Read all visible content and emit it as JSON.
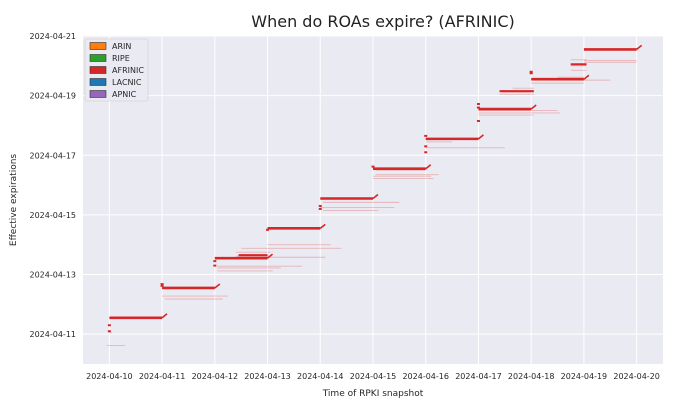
{
  "chart_data": {
    "type": "scatter",
    "title": "When do ROAs expire? (AFRINIC)",
    "xlabel": "Time of RPKI snapshot",
    "ylabel": "Effective expirations",
    "x_ticks": [
      "2024-04-10",
      "2024-04-11",
      "2024-04-12",
      "2024-04-13",
      "2024-04-14",
      "2024-04-15",
      "2024-04-16",
      "2024-04-17",
      "2024-04-18",
      "2024-04-19",
      "2024-04-20"
    ],
    "y_ticks": [
      "2024-04-11",
      "2024-04-13",
      "2024-04-15",
      "2024-04-17",
      "2024-04-19",
      "2024-04-21"
    ],
    "x_range_days": [
      -0.5,
      10.5
    ],
    "y_range_days": [
      0.0,
      11.0
    ],
    "grid": true,
    "legend_position": "top-left",
    "legend": [
      {
        "name": "ARIN",
        "color": "#ff7f0e"
      },
      {
        "name": "RIPE",
        "color": "#2ca02c"
      },
      {
        "name": "AFRINIC",
        "color": "#d62728"
      },
      {
        "name": "LACNIC",
        "color": "#1f77b4"
      },
      {
        "name": "APNIC",
        "color": "#9467bd"
      }
    ],
    "series": [
      {
        "name": "AFRINIC",
        "color": "#d62728",
        "main_segments": [
          {
            "x": [
              0.0,
              1.0
            ],
            "y": 1.55
          },
          {
            "x": [
              1.0,
              2.0
            ],
            "y": 2.55
          },
          {
            "x": [
              2.0,
              3.0
            ],
            "y": 3.55
          },
          {
            "x": [
              3.0,
              4.0
            ],
            "y": 4.55
          },
          {
            "x": [
              4.0,
              5.0
            ],
            "y": 5.55
          },
          {
            "x": [
              5.0,
              6.0
            ],
            "y": 6.55
          },
          {
            "x": [
              6.0,
              7.0
            ],
            "y": 7.55
          },
          {
            "x": [
              7.0,
              8.0
            ],
            "y": 8.55
          },
          {
            "x": [
              8.0,
              9.0
            ],
            "y": 9.55
          },
          {
            "x": [
              9.0,
              10.0
            ],
            "y": 10.55
          }
        ],
        "minor_segments": [
          {
            "x": [
              -0.05,
              0.3
            ],
            "y": 0.62
          },
          {
            "x": [
              -0.02,
              0.05
            ],
            "y": 1.05
          },
          {
            "x": [
              1.0,
              2.25
            ],
            "y": 2.28
          },
          {
            "x": [
              1.05,
              2.15
            ],
            "y": 2.18
          },
          {
            "x": [
              2.05,
              3.65
            ],
            "y": 3.28
          },
          {
            "x": [
              2.05,
              3.1
            ],
            "y": 3.12
          },
          {
            "x": [
              2.05,
              3.25
            ],
            "y": 3.22
          },
          {
            "x": [
              2.4,
              3.05
            ],
            "y": 3.62
          },
          {
            "x": [
              2.4,
              3.05
            ],
            "y": 3.75
          },
          {
            "x": [
              2.4,
              4.1
            ],
            "y": 3.58
          },
          {
            "x": [
              2.5,
              4.4
            ],
            "y": 3.88
          },
          {
            "x": [
              3.0,
              4.2
            ],
            "y": 4.0
          },
          {
            "x": [
              4.0,
              5.4
            ],
            "y": 5.25
          },
          {
            "x": [
              4.05,
              5.1
            ],
            "y": 5.15
          },
          {
            "x": [
              4.05,
              5.5
            ],
            "y": 5.42
          },
          {
            "x": [
              5.0,
              6.1
            ],
            "y": 6.3
          },
          {
            "x": [
              5.0,
              6.15
            ],
            "y": 6.22
          },
          {
            "x": [
              5.05,
              6.25
            ],
            "y": 6.35
          },
          {
            "x": [
              5.05,
              6.0
            ],
            "y": 6.5
          },
          {
            "x": [
              6.0,
              7.5
            ],
            "y": 7.25
          },
          {
            "x": [
              6.0,
              6.5
            ],
            "y": 7.45
          },
          {
            "x": [
              7.0,
              8.05
            ],
            "y": 8.35
          },
          {
            "x": [
              7.0,
              8.5
            ],
            "y": 8.5
          },
          {
            "x": [
              7.0,
              8.55
            ],
            "y": 8.42
          },
          {
            "x": [
              7.4,
              8.05
            ],
            "y": 9.05
          },
          {
            "x": [
              7.65,
              8.05
            ],
            "y": 9.25
          },
          {
            "x": [
              8.0,
              9.0
            ],
            "y": 9.42
          },
          {
            "x": [
              8.05,
              9.5
            ],
            "y": 9.52
          },
          {
            "x": [
              8.5,
              9.0
            ],
            "y": 9.62
          },
          {
            "x": [
              8.75,
              9.05
            ],
            "y": 9.85
          },
          {
            "x": [
              8.75,
              9.05
            ],
            "y": 10.2
          },
          {
            "x": [
              9.0,
              10.0
            ],
            "y": 10.18
          },
          {
            "x": [
              9.0,
              10.0
            ],
            "y": 10.12
          },
          {
            "x": [
              7.45,
              8.0
            ],
            "y": 9.12
          },
          {
            "x": [
              8.75,
              9.05
            ],
            "y": 10.0
          }
        ],
        "step_segments": [
          {
            "x": [
              7.4,
              8.05
            ],
            "y": 9.15
          },
          {
            "x": [
              8.75,
              9.05
            ],
            "y": 10.05
          },
          {
            "x": [
              2.45,
              3.0
            ],
            "y": 3.65
          }
        ],
        "jump_points": [
          {
            "x": 0.0,
            "y": 1.1
          },
          {
            "x": 0.0,
            "y": 1.3
          },
          {
            "x": 1.0,
            "y": 2.62
          },
          {
            "x": 1.0,
            "y": 2.68
          },
          {
            "x": 2.0,
            "y": 3.3
          },
          {
            "x": 2.0,
            "y": 3.45
          },
          {
            "x": 3.0,
            "y": 4.5
          },
          {
            "x": 4.0,
            "y": 5.2
          },
          {
            "x": 4.0,
            "y": 5.3
          },
          {
            "x": 5.0,
            "y": 6.62
          },
          {
            "x": 6.0,
            "y": 7.1
          },
          {
            "x": 6.0,
            "y": 7.3
          },
          {
            "x": 6.0,
            "y": 7.65
          },
          {
            "x": 7.0,
            "y": 8.15
          },
          {
            "x": 7.0,
            "y": 8.6
          },
          {
            "x": 7.0,
            "y": 8.72
          },
          {
            "x": 8.0,
            "y": 9.8
          },
          {
            "x": 8.0,
            "y": 9.75
          }
        ]
      }
    ]
  }
}
